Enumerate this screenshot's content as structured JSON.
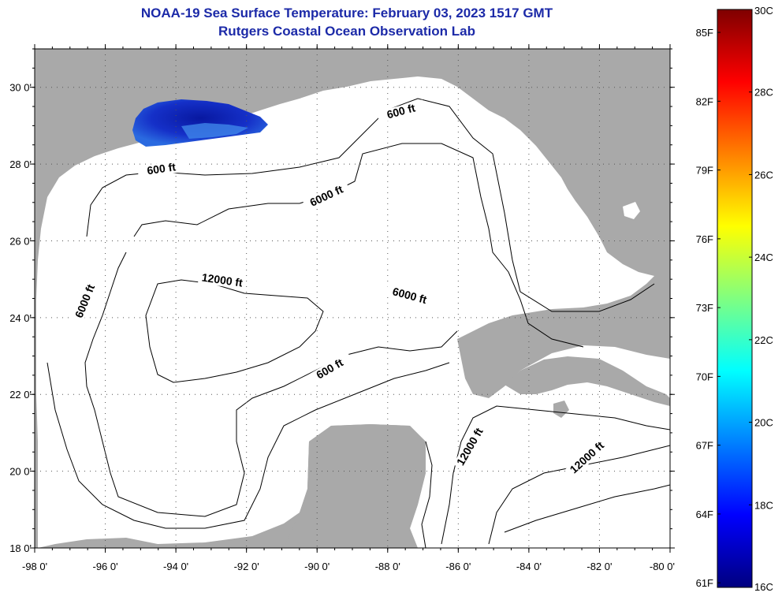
{
  "header": {
    "title": "NOAA-19 Sea Surface Temperature:  February 03, 2023 1517 GMT",
    "subtitle": "Rutgers Coastal Ocean Observation Lab"
  },
  "axes": {
    "x_ticks": [
      {
        "value": -98,
        "label": "-98 0'"
      },
      {
        "value": -96,
        "label": "-96 0'"
      },
      {
        "value": -94,
        "label": "-94 0'"
      },
      {
        "value": -92,
        "label": "-92 0'"
      },
      {
        "value": -90,
        "label": "-90 0'"
      },
      {
        "value": -88,
        "label": "-88 0'"
      },
      {
        "value": -86,
        "label": "-86 0'"
      },
      {
        "value": -84,
        "label": "-84 0'"
      },
      {
        "value": -82,
        "label": "-82 0'"
      },
      {
        "value": -80,
        "label": "-80 0'"
      }
    ],
    "y_ticks": [
      {
        "value": 30,
        "label": "30 0'"
      },
      {
        "value": 28,
        "label": "28 0'"
      },
      {
        "value": 26,
        "label": "26 0'"
      },
      {
        "value": 24,
        "label": "24 0'"
      },
      {
        "value": 22,
        "label": "22 0'"
      },
      {
        "value": 20,
        "label": "20 0'"
      },
      {
        "value": 18,
        "label": "18 0'"
      }
    ],
    "lon_range": [
      -98,
      -80
    ],
    "lat_range": [
      18,
      31
    ]
  },
  "contour_labels": [
    {
      "text": "600 ft",
      "lon": -87.6,
      "lat": 29.3,
      "angle": -15
    },
    {
      "text": "600 ft",
      "lon": -94.4,
      "lat": 27.8,
      "angle": -8
    },
    {
      "text": "6000 ft",
      "lon": -89.7,
      "lat": 27.1,
      "angle": -25
    },
    {
      "text": "12000 ft",
      "lon": -92.7,
      "lat": 24.9,
      "angle": 8
    },
    {
      "text": "6000 ft",
      "lon": -87.4,
      "lat": 24.5,
      "angle": 15
    },
    {
      "text": "6000 ft",
      "lon": -96.5,
      "lat": 24.4,
      "angle": -68
    },
    {
      "text": "600 ft",
      "lon": -89.6,
      "lat": 22.6,
      "angle": -30
    },
    {
      "text": "12000 ft",
      "lon": -85.6,
      "lat": 20.6,
      "angle": -60
    },
    {
      "text": "12000 ft",
      "lon": -82.3,
      "lat": 20.3,
      "angle": -42
    }
  ],
  "colorbar": {
    "fahrenheit": [
      {
        "value": 85,
        "label": "85F"
      },
      {
        "value": 82,
        "label": "82F"
      },
      {
        "value": 79,
        "label": "79F"
      },
      {
        "value": 76,
        "label": "76F"
      },
      {
        "value": 73,
        "label": "73F"
      },
      {
        "value": 70,
        "label": "70F"
      },
      {
        "value": 67,
        "label": "67F"
      },
      {
        "value": 64,
        "label": "64F"
      },
      {
        "value": 61,
        "label": "61F"
      }
    ],
    "celsius": [
      {
        "value": 30,
        "label": "30C"
      },
      {
        "value": 28,
        "label": "28C"
      },
      {
        "value": 26,
        "label": "26C"
      },
      {
        "value": 24,
        "label": "24C"
      },
      {
        "value": 22,
        "label": "22C"
      },
      {
        "value": 20,
        "label": "20C"
      },
      {
        "value": 18,
        "label": "18C"
      },
      {
        "value": 16,
        "label": "16C"
      }
    ],
    "celsius_range": [
      16,
      30
    ],
    "colors": [
      "#00007f",
      "#0000ff",
      "#0080ff",
      "#00ffff",
      "#80ff80",
      "#ffff00",
      "#ff8000",
      "#ff0000",
      "#7f0000"
    ]
  },
  "colors": {
    "land": "#a9a9a9",
    "ocean": "#ffffff",
    "title": "#1c2aa8",
    "sst_cold": "#1530c8",
    "sst_core": "#0a1fa8"
  }
}
